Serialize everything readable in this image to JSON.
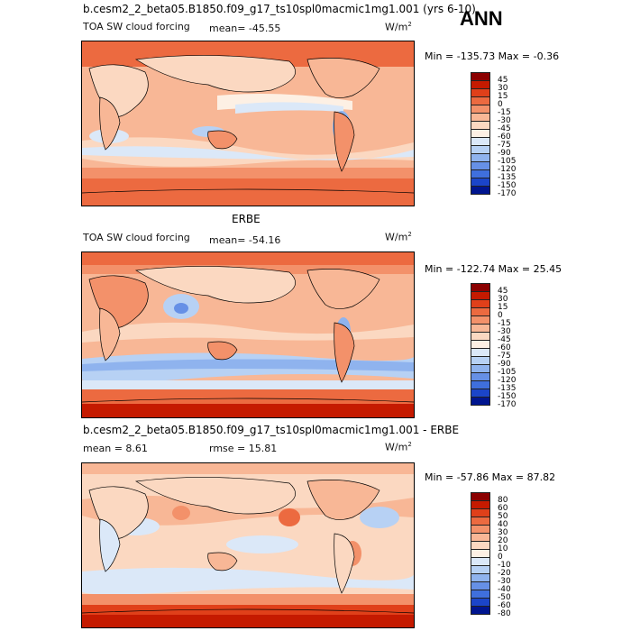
{
  "header": {
    "run_title": "b.cesm2_2_beta05.B1850.f09_g17_ts10spl0macmic1mg1.001 (yrs 6-10)",
    "season": "ANN"
  },
  "panels": [
    {
      "variable": "TOA SW cloud forcing",
      "stat": "mean=  -45.55",
      "units": "W/m",
      "units_exp": "2",
      "minmax": "Min = -135.73 Max =  -0.36",
      "colorbar": [
        "45",
        "30",
        "15",
        "0",
        "-15",
        "-30",
        "-45",
        "-60",
        "-75",
        "-90",
        "-105",
        "-120",
        "-135",
        "-150",
        "-170"
      ]
    },
    {
      "title": "ERBE",
      "variable": "TOA SW cloud forcing",
      "stat": "mean= -54.16",
      "units": "W/m",
      "units_exp": "2",
      "minmax": "Min = -122.74 Max =  25.45",
      "colorbar": [
        "45",
        "30",
        "15",
        "0",
        "-15",
        "-30",
        "-45",
        "-60",
        "-75",
        "-90",
        "-105",
        "-120",
        "-135",
        "-150",
        "-170"
      ]
    },
    {
      "title": "b.cesm2_2_beta05.B1850.f09_g17_ts10spl0macmic1mg1.001 - ERBE",
      "mean": "mean =   8.61",
      "rmse": "rmse =   15.81",
      "units": "W/m",
      "units_exp": "2",
      "minmax": "Min = -57.86 Max =  87.82",
      "colorbar": [
        "80",
        "60",
        "50",
        "40",
        "30",
        "20",
        "10",
        "0",
        "-10",
        "-20",
        "-30",
        "-40",
        "-50",
        "-60",
        "-80"
      ]
    }
  ],
  "colors": {
    "palette": [
      "#8b0000",
      "#c51a00",
      "#e0401a",
      "#ec6a40",
      "#f3916a",
      "#f8b796",
      "#fbd8c1",
      "#fdf0e4",
      "#dbe8f8",
      "#b7d1f4",
      "#8fb3ee",
      "#6690e6",
      "#3f6fdd",
      "#1b45c9",
      "#00158f"
    ],
    "ocean_warm": "#ef7a52",
    "land": "#f6c6a8"
  }
}
